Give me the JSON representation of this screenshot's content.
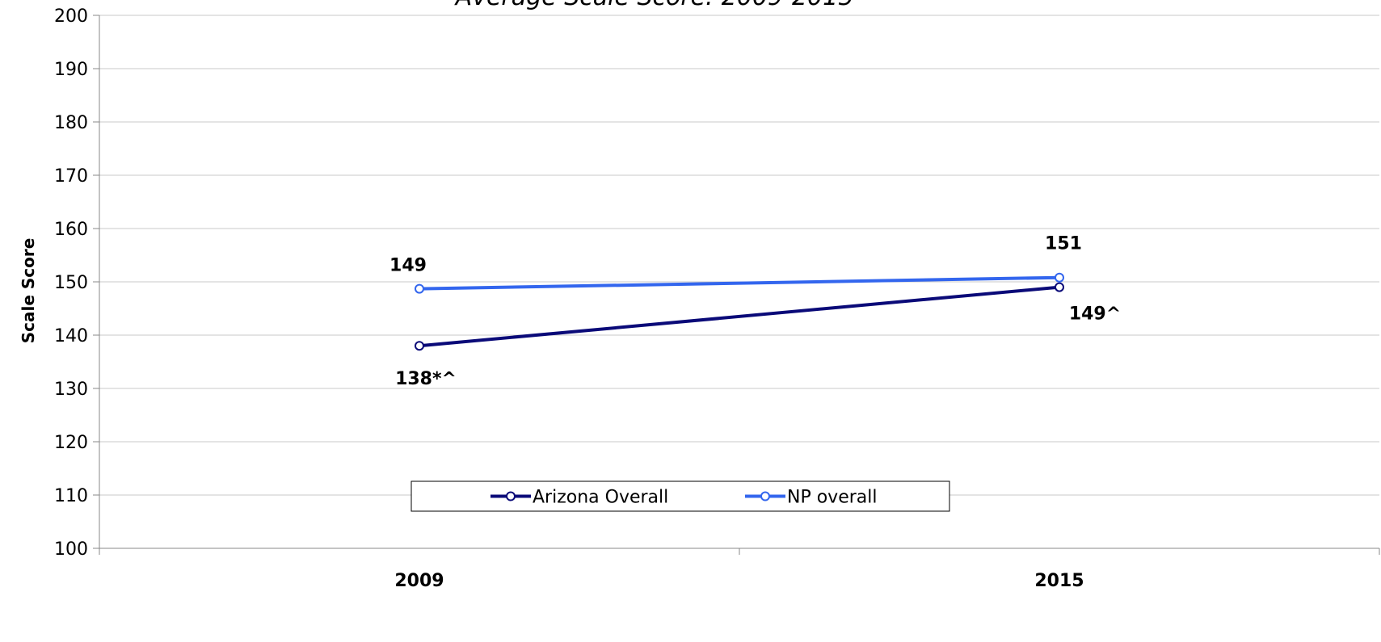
{
  "chart_data": {
    "type": "line",
    "title": "Average Scale Score: 2009-2015",
    "xlabel": "",
    "ylabel": "Scale Score",
    "ylim": [
      100,
      200
    ],
    "ytick_step": 10,
    "grid": "horizontal",
    "legend_position": "bottom-center",
    "categories": [
      "2009",
      "2015"
    ],
    "series": [
      {
        "name": "Arizona Overall",
        "color": "#0a0a78",
        "values": [
          138,
          149
        ],
        "labels": [
          "138*^",
          "149^"
        ],
        "label_position": "below"
      },
      {
        "name": "NP overall",
        "color": "#3366ee",
        "values": [
          148.7,
          150.8
        ],
        "labels": [
          "149",
          "151"
        ],
        "label_position": "above"
      }
    ]
  }
}
